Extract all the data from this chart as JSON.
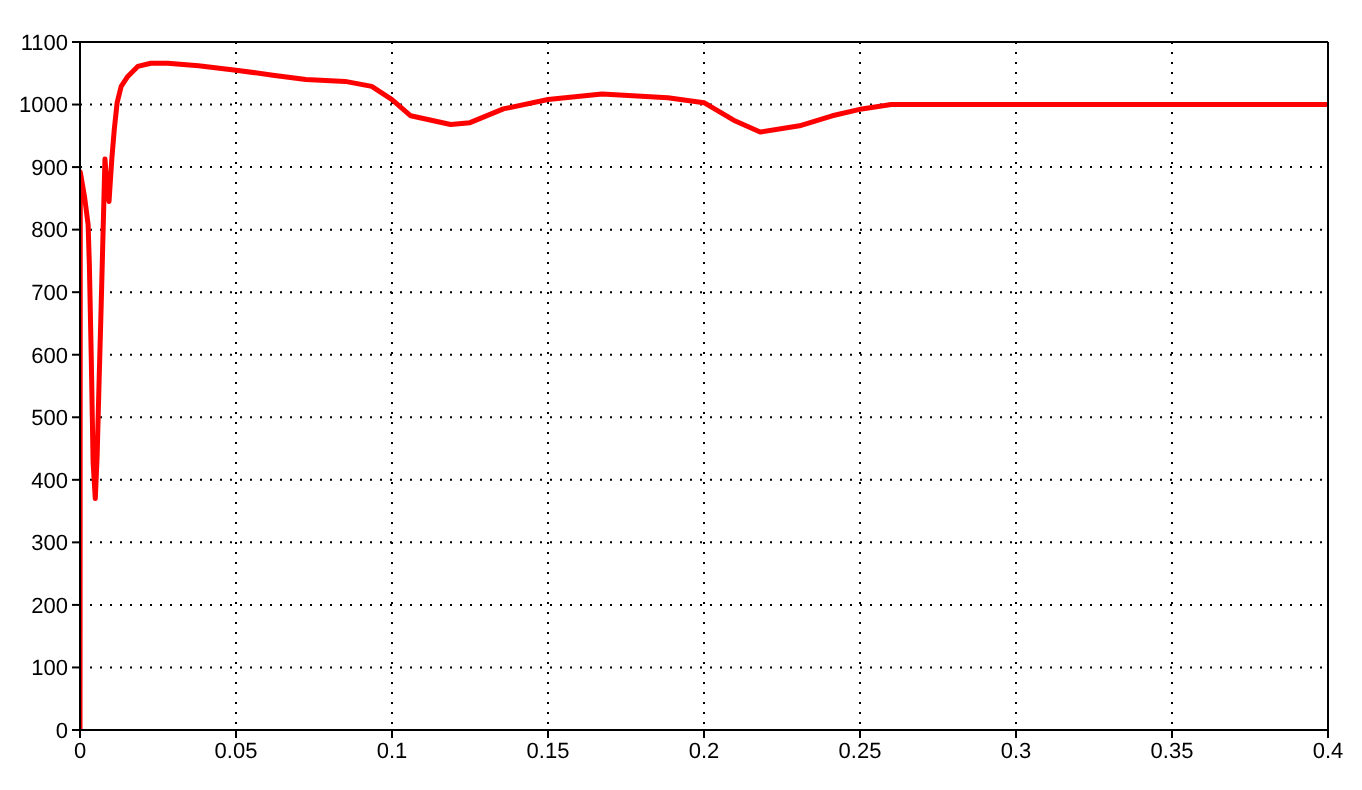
{
  "chart_data": {
    "type": "line",
    "x": [
      0,
      0.0001,
      0.0015,
      0.0026,
      0.003,
      0.0036,
      0.0042,
      0.0049,
      0.0055,
      0.0061,
      0.0068,
      0.0074,
      0.008,
      0.0087,
      0.0093,
      0.0102,
      0.011,
      0.0119,
      0.0132,
      0.0153,
      0.0185,
      0.0227,
      0.0281,
      0.038,
      0.05,
      0.0618,
      0.0724,
      0.085,
      0.0935,
      0.1,
      0.106,
      0.1188,
      0.125,
      0.1357,
      0.15,
      0.1673,
      0.1884,
      0.2,
      0.2095,
      0.218,
      0.2306,
      0.2411,
      0.2506,
      0.26,
      0.3,
      0.35,
      0.4
    ],
    "series": [
      {
        "color": "#ff0000",
        "values": [
          0,
          892,
          851,
          808,
          744,
          598,
          428,
          370,
          439,
          554,
          681,
          797,
          913,
          866,
          845,
          913,
          961,
          1003,
          1029,
          1045,
          1061,
          1066,
          1066,
          1062,
          1055,
          1047,
          1040,
          1037,
          1029,
          1008,
          982,
          968,
          971,
          993,
          1008,
          1017,
          1011,
          1003,
          975,
          956,
          966,
          982,
          993,
          1000,
          1000,
          1000,
          1000
        ]
      }
    ],
    "xlim": [
      0,
      0.4
    ],
    "xticks": [
      0,
      0.05,
      0.1,
      0.15,
      0.2,
      0.25,
      0.3,
      0.35,
      0.4
    ],
    "ylim": [
      0,
      1100
    ],
    "yticks": [
      0,
      100,
      200,
      300,
      400,
      500,
      600,
      700,
      800,
      900,
      1000,
      1100
    ],
    "grid": true,
    "line_style": "solid",
    "marker": "none"
  }
}
